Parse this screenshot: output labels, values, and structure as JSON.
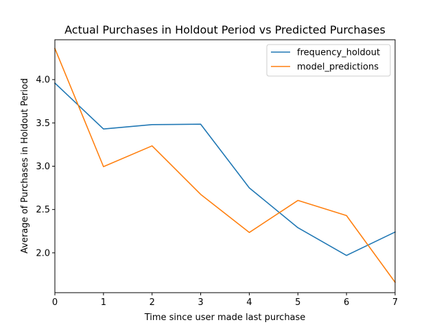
{
  "chart_data": {
    "type": "line",
    "title": "Actual Purchases in Holdout Period vs Predicted Purchases",
    "xlabel": "Time since user made last purchase",
    "ylabel": "Average of Purchases in Holdout Period",
    "x": [
      0,
      1,
      2,
      3,
      4,
      5,
      6,
      7
    ],
    "xlim": [
      0,
      7
    ],
    "ylim": [
      1.54,
      4.46
    ],
    "xticks": [
      0,
      1,
      2,
      3,
      4,
      5,
      6,
      7
    ],
    "yticks": [
      2.0,
      2.5,
      3.0,
      3.5,
      4.0
    ],
    "x_tick_labels": [
      "0",
      "1",
      "2",
      "3",
      "4",
      "5",
      "6",
      "7"
    ],
    "y_tick_labels": [
      "2.0",
      "2.5",
      "3.0",
      "3.5",
      "4.0"
    ],
    "grid": false,
    "legend_position": "top-right",
    "series": [
      {
        "name": "frequency_holdout",
        "color": "#1f77b4",
        "values": [
          3.96,
          3.43,
          3.48,
          3.485,
          2.75,
          2.29,
          1.97,
          2.24
        ]
      },
      {
        "name": "model_predictions",
        "color": "#ff7f0e",
        "values": [
          4.36,
          2.995,
          3.235,
          2.675,
          2.235,
          2.605,
          2.43,
          1.66
        ]
      }
    ]
  }
}
